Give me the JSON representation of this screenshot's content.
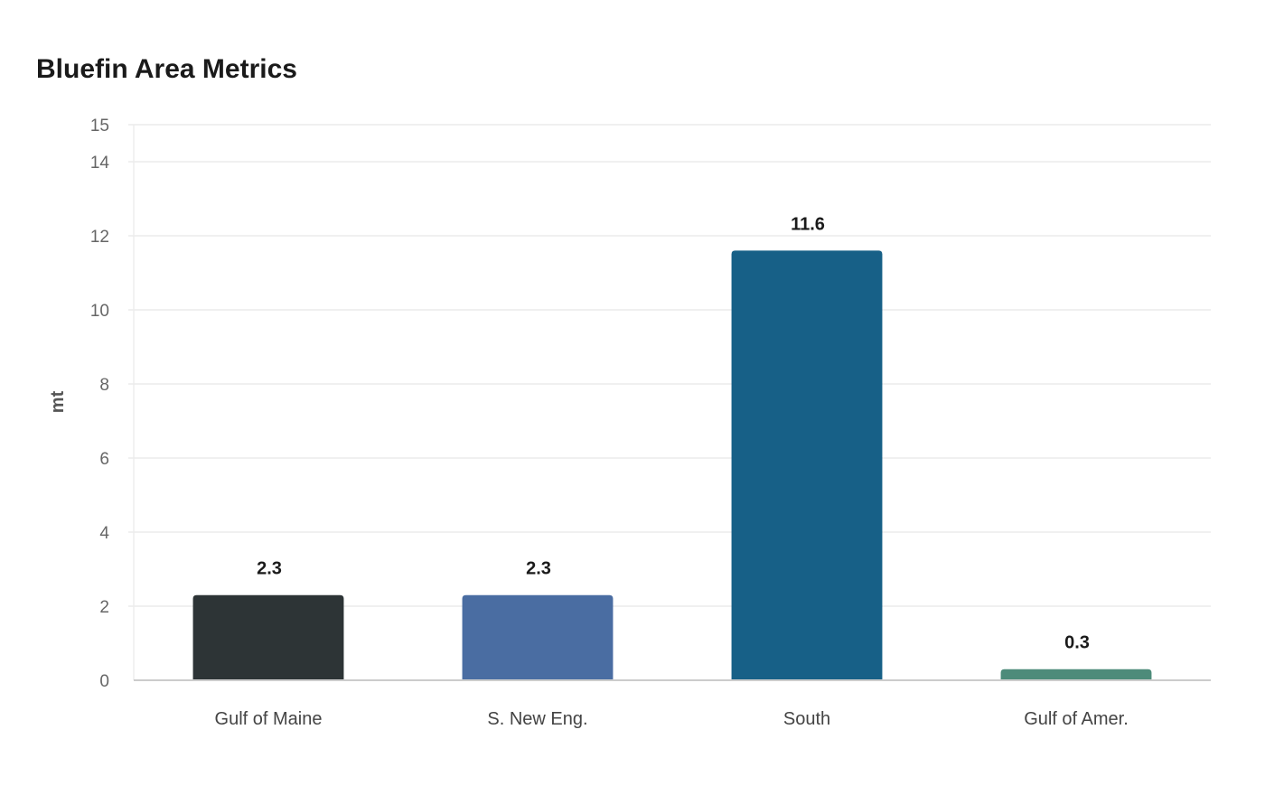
{
  "chart_data": {
    "type": "bar",
    "title": "Bluefin Area Metrics",
    "xlabel": "",
    "ylabel": "mt",
    "ylim": [
      0,
      15
    ],
    "yticks": [
      0,
      2,
      4,
      6,
      8,
      10,
      12,
      14,
      15
    ],
    "grid": true,
    "categories": [
      "Gulf of Maine",
      "S. New Eng.",
      "South",
      "Gulf of Amer."
    ],
    "values": [
      2.3,
      2.3,
      11.6,
      0.3
    ],
    "data_labels": [
      "2.3",
      "2.3",
      "11.6",
      "0.3"
    ],
    "colors": [
      "#2d3436",
      "#4a6da2",
      "#176087",
      "#4d8b7a"
    ]
  }
}
